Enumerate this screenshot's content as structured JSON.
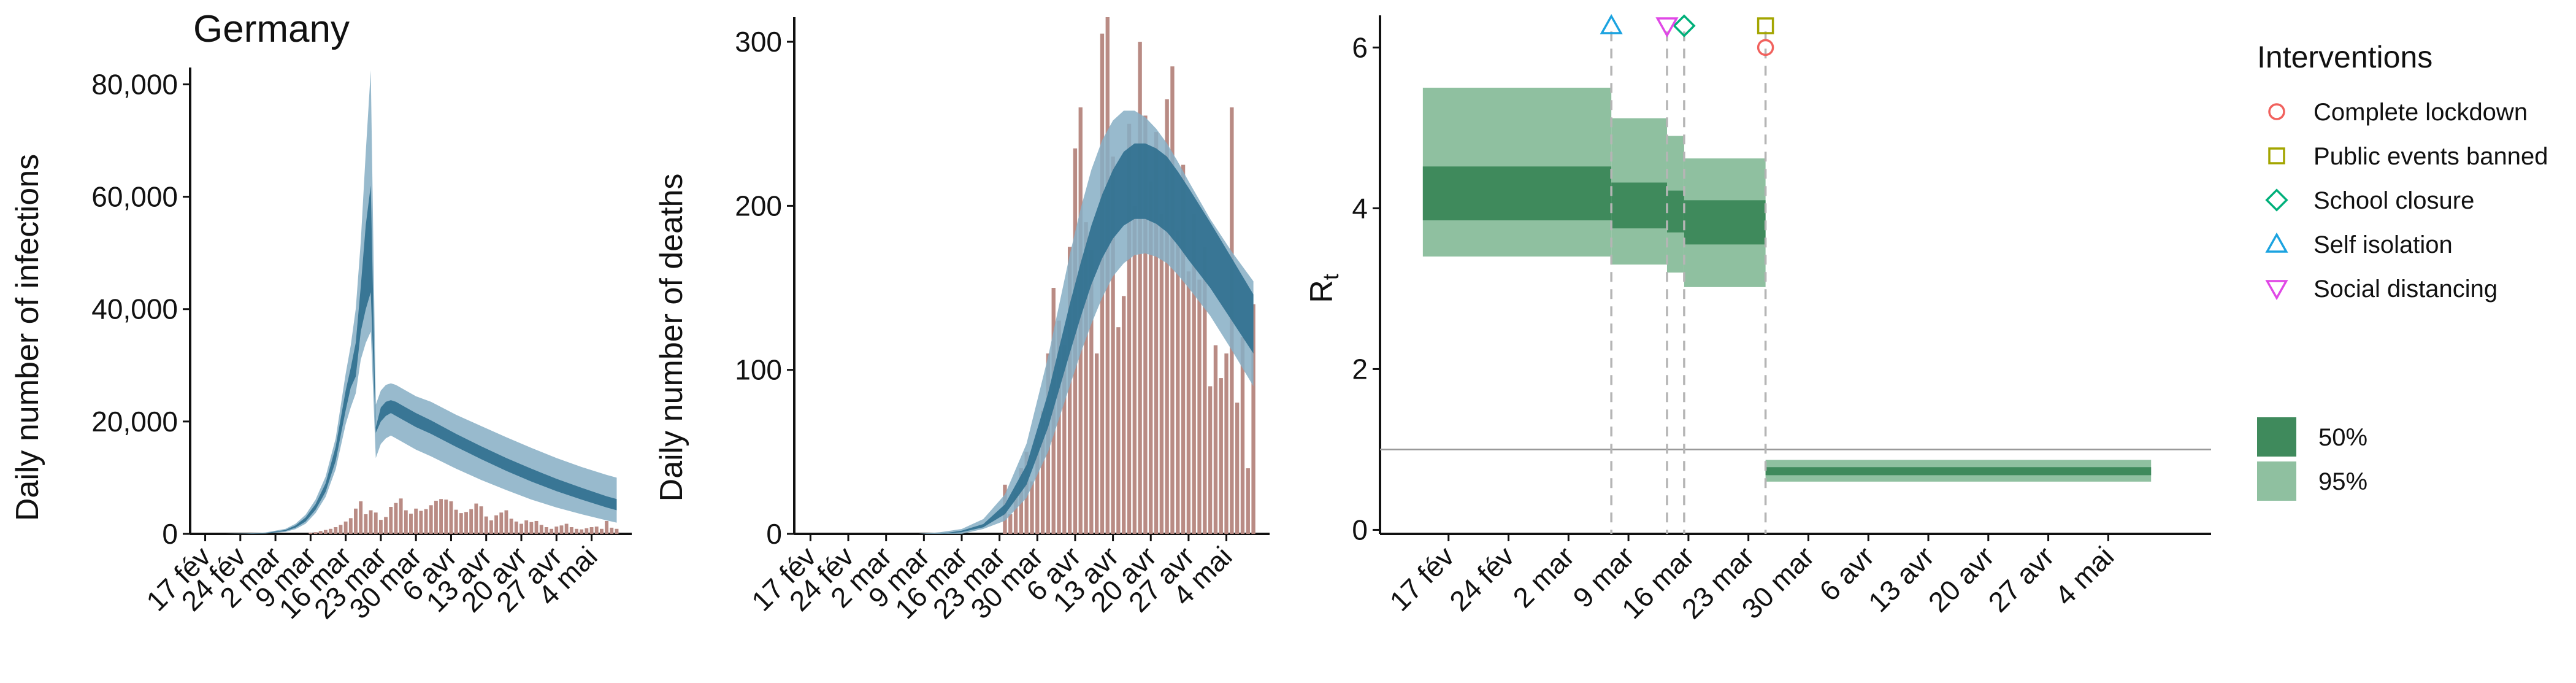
{
  "chart_data": [
    {
      "type": "bar",
      "title": "Germany",
      "xlabel": "",
      "ylabel": "Daily number of infections",
      "ylim": [
        0,
        83000
      ],
      "yticks": [
        0,
        20000,
        40000,
        60000,
        80000
      ],
      "ytick_labels": [
        "0",
        "20,000",
        "40,000",
        "60,000",
        "80,000"
      ],
      "xlim": [
        -3,
        85
      ],
      "xticks": [
        0,
        7,
        14,
        21,
        28,
        35,
        42,
        49,
        56,
        63,
        70,
        77
      ],
      "xtick_labels": [
        "17 fév",
        "24 fév",
        "2 mar",
        "9 mar",
        "16 mar",
        "23 mar",
        "30 mar",
        "6 avr",
        "13 avr",
        "20 avr",
        "27 avr",
        "4 mai"
      ],
      "bar_color": "#b98b84",
      "band_colors": {
        "inner": "#2f6f8f",
        "outer": "#86aec4"
      },
      "bars": {
        "x": [
          21,
          22,
          23,
          24,
          25,
          26,
          27,
          28,
          29,
          30,
          31,
          32,
          33,
          34,
          35,
          36,
          37,
          38,
          39,
          40,
          41,
          42,
          43,
          44,
          45,
          46,
          47,
          48,
          49,
          50,
          51,
          52,
          53,
          54,
          55,
          56,
          57,
          58,
          59,
          60,
          61,
          62,
          63,
          64,
          65,
          66,
          67,
          68,
          69,
          70,
          71,
          72,
          73,
          74,
          75,
          76,
          77,
          78,
          79,
          80,
          81,
          82
        ],
        "values": [
          200,
          300,
          500,
          700,
          900,
          1200,
          1600,
          2200,
          2800,
          4500,
          5800,
          3500,
          4200,
          3800,
          2500,
          3000,
          4800,
          5500,
          6300,
          4200,
          3600,
          4500,
          4100,
          4400,
          5100,
          5900,
          6200,
          6100,
          5800,
          4300,
          3700,
          3900,
          4400,
          5400,
          4900,
          3100,
          2400,
          3300,
          3800,
          4200,
          2700,
          2200,
          1800,
          2400,
          2100,
          2300,
          1600,
          1200,
          900,
          1300,
          1500,
          1800,
          1200,
          900,
          800,
          1000,
          1200,
          1300,
          900,
          2300,
          1100,
          900
        ]
      },
      "bands": {
        "x": [
          0,
          4,
          8,
          12,
          16,
          18,
          20,
          22,
          24,
          26,
          28,
          29,
          30,
          31,
          32,
          33,
          34,
          35,
          36,
          37,
          38,
          40,
          42,
          45,
          50,
          55,
          60,
          65,
          70,
          75,
          80,
          82
        ],
        "inner_low": [
          0,
          0,
          0,
          100,
          500,
          1100,
          2200,
          4300,
          7500,
          13000,
          22000,
          26000,
          28000,
          36000,
          40000,
          43000,
          18000,
          20000,
          21000,
          21500,
          21000,
          20000,
          19000,
          17800,
          15500,
          13300,
          11200,
          9300,
          7600,
          6100,
          4700,
          4200
        ],
        "inner_high": [
          0,
          0,
          0,
          150,
          700,
          1500,
          2900,
          5300,
          9000,
          15500,
          25500,
          29500,
          34000,
          44000,
          55000,
          62000,
          19000,
          22500,
          23500,
          23800,
          23500,
          22500,
          21500,
          20200,
          17800,
          15600,
          13500,
          11600,
          9800,
          8200,
          6700,
          6200
        ],
        "outer_low": [
          0,
          0,
          0,
          60,
          350,
          850,
          1800,
          3700,
          6600,
          11500,
          19500,
          22500,
          25000,
          31000,
          34000,
          36000,
          13500,
          16000,
          17000,
          17500,
          17000,
          16000,
          15000,
          13800,
          11600,
          9600,
          7800,
          6100,
          4700,
          3500,
          2400,
          2000
        ],
        "outer_high": [
          0,
          0,
          50,
          250,
          900,
          1800,
          3400,
          6100,
          10200,
          17000,
          28500,
          33500,
          40000,
          52000,
          68000,
          82500,
          23000,
          25500,
          26500,
          26800,
          26500,
          25500,
          24500,
          23500,
          21200,
          19200,
          17200,
          15300,
          13500,
          11900,
          10500,
          10000
        ]
      }
    },
    {
      "type": "bar",
      "title": "",
      "xlabel": "",
      "ylabel": "Daily number of deaths",
      "ylim": [
        0,
        315
      ],
      "yticks": [
        0,
        100,
        200,
        300
      ],
      "ytick_labels": [
        "0",
        "100",
        "200",
        "300"
      ],
      "xlim": [
        -3,
        85
      ],
      "xticks": [
        0,
        7,
        14,
        21,
        28,
        35,
        42,
        49,
        56,
        63,
        70,
        77
      ],
      "xtick_labels": [
        "17 fév",
        "24 fév",
        "2 mar",
        "9 mar",
        "16 mar",
        "23 mar",
        "30 mar",
        "6 avr",
        "13 avr",
        "20 avr",
        "27 avr",
        "4 mai"
      ],
      "bar_color": "#b98b84",
      "band_colors": {
        "inner": "#2f6f8f",
        "outer": "#86aec4"
      },
      "bars": {
        "x": [
          36,
          37,
          38,
          39,
          40,
          41,
          42,
          43,
          44,
          45,
          46,
          47,
          48,
          49,
          50,
          51,
          52,
          53,
          54,
          55,
          56,
          57,
          58,
          59,
          60,
          61,
          62,
          63,
          64,
          65,
          66,
          67,
          68,
          69,
          70,
          71,
          72,
          73,
          74,
          75,
          76,
          77,
          78,
          79,
          80,
          81,
          82
        ],
        "values": [
          30,
          12,
          25,
          40,
          50,
          32,
          60,
          75,
          110,
          150,
          130,
          115,
          175,
          235,
          260,
          190,
          173,
          110,
          305,
          330,
          230,
          126,
          145,
          250,
          200,
          300,
          255,
          215,
          245,
          195,
          265,
          285,
          185,
          225,
          160,
          195,
          155,
          175,
          90,
          115,
          95,
          110,
          260,
          80,
          120,
          40,
          140
        ]
      },
      "bands": {
        "x": [
          20,
          24,
          28,
          32,
          36,
          40,
          44,
          48,
          50,
          52,
          54,
          56,
          58,
          60,
          62,
          64,
          66,
          68,
          70,
          74,
          78,
          82
        ],
        "inner_low": [
          0,
          0,
          1,
          4,
          12,
          30,
          65,
          110,
          132,
          152,
          168,
          180,
          188,
          192,
          192,
          189,
          184,
          176,
          167,
          150,
          130,
          110
        ],
        "inner_high": [
          0,
          0,
          2,
          6,
          18,
          42,
          86,
          140,
          165,
          188,
          207,
          222,
          233,
          238,
          238,
          235,
          230,
          221,
          211,
          190,
          168,
          146
        ],
        "outer_low": [
          0,
          0,
          0,
          3,
          8,
          22,
          50,
          90,
          110,
          128,
          144,
          157,
          165,
          170,
          171,
          169,
          165,
          158,
          150,
          133,
          112,
          90
        ],
        "outer_high": [
          0,
          1,
          3,
          9,
          24,
          55,
          108,
          170,
          198,
          222,
          240,
          252,
          258,
          258,
          254,
          247,
          238,
          227,
          215,
          192,
          172,
          154
        ]
      }
    },
    {
      "type": "area",
      "title": "",
      "xlabel": "",
      "ylabel": "R",
      "ylabel_subscript": "t",
      "ylim": [
        -0.05,
        6.4
      ],
      "yticks": [
        0,
        2,
        4,
        6
      ],
      "ytick_labels": [
        "0",
        "2",
        "4",
        "6"
      ],
      "xlim": [
        -8,
        89
      ],
      "xticks": [
        0,
        7,
        14,
        21,
        28,
        35,
        42,
        49,
        56,
        63,
        70,
        77
      ],
      "xtick_labels": [
        "17 fév",
        "24 fév",
        "2 mar",
        "9 mar",
        "16 mar",
        "23 mar",
        "30 mar",
        "6 avr",
        "13 avr",
        "20 avr",
        "27 avr",
        "4 mai"
      ],
      "reference_line": 1.0,
      "colors": {
        "band_50": "#3f8a5c",
        "band_95": "#8fc0a0",
        "dashed": "#b5b5b5",
        "reference": "#999999"
      },
      "steps": [
        {
          "x0": -3,
          "x1": 19,
          "q50": [
            3.85,
            4.52
          ],
          "q95": [
            3.4,
            5.5
          ]
        },
        {
          "x0": 19,
          "x1": 25.5,
          "q50": [
            3.75,
            4.32
          ],
          "q95": [
            3.3,
            5.12
          ]
        },
        {
          "x0": 25.5,
          "x1": 27.5,
          "q50": [
            3.7,
            4.22
          ],
          "q95": [
            3.2,
            4.9
          ]
        },
        {
          "x0": 27.5,
          "x1": 37,
          "q50": [
            3.55,
            4.1
          ],
          "q95": [
            3.02,
            4.62
          ]
        },
        {
          "x0": 37,
          "x1": 82,
          "q50": [
            0.68,
            0.78
          ],
          "q95": [
            0.6,
            0.87
          ]
        }
      ],
      "interventions": [
        {
          "label": "Complete lockdown",
          "day": 37,
          "r": 6.0,
          "shape": "circle",
          "color": "#f1615d"
        },
        {
          "label": "Public events banned",
          "day": 37,
          "r": 6.27,
          "shape": "square",
          "color": "#a3a500"
        },
        {
          "label": "School closure",
          "day": 27.5,
          "r": 6.27,
          "shape": "diamond",
          "color": "#00b07a"
        },
        {
          "label": "Self isolation",
          "day": 19,
          "r": 6.27,
          "shape": "triangle-up",
          "color": "#1ba3e0"
        },
        {
          "label": "Social distancing",
          "day": 25.5,
          "r": 6.27,
          "shape": "triangle-down",
          "color": "#e048e6"
        }
      ],
      "legend": {
        "title": "Interventions",
        "items": [
          "Complete lockdown",
          "Public events banned",
          "School closure",
          "Self isolation",
          "Social distancing"
        ],
        "band_items": [
          "50%",
          "95%"
        ],
        "placement": "right"
      }
    }
  ]
}
